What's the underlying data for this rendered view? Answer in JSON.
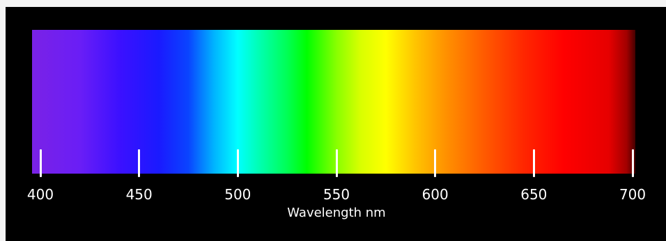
{
  "axis": {
    "title": "Wavelength nm",
    "range": [
      400,
      700
    ],
    "ticks": [
      400,
      450,
      500,
      550,
      600,
      650,
      700
    ]
  },
  "spectrum": {
    "stops": [
      {
        "nm": 392,
        "color": "#4a3a7a"
      },
      {
        "nm": 396,
        "color": "#7a22e6"
      },
      {
        "nm": 420,
        "color": "#6a1ef6"
      },
      {
        "nm": 440,
        "color": "#3c10ff"
      },
      {
        "nm": 460,
        "color": "#1a1aff"
      },
      {
        "nm": 475,
        "color": "#0a44ff"
      },
      {
        "nm": 488,
        "color": "#00b4ff"
      },
      {
        "nm": 500,
        "color": "#00ffff"
      },
      {
        "nm": 510,
        "color": "#00ffb8"
      },
      {
        "nm": 525,
        "color": "#00ff55"
      },
      {
        "nm": 535,
        "color": "#00ff00"
      },
      {
        "nm": 550,
        "color": "#88ff00"
      },
      {
        "nm": 562,
        "color": "#d8ff00"
      },
      {
        "nm": 575,
        "color": "#ffff00"
      },
      {
        "nm": 590,
        "color": "#ffc400"
      },
      {
        "nm": 605,
        "color": "#ff9200"
      },
      {
        "nm": 625,
        "color": "#ff5a00"
      },
      {
        "nm": 645,
        "color": "#ff2600"
      },
      {
        "nm": 665,
        "color": "#ff0000"
      },
      {
        "nm": 688,
        "color": "#e60000"
      },
      {
        "nm": 697,
        "color": "#a20000"
      },
      {
        "nm": 702,
        "color": "#3a0000"
      }
    ]
  },
  "colors": {
    "background": "#000000",
    "text": "#ffffff"
  }
}
